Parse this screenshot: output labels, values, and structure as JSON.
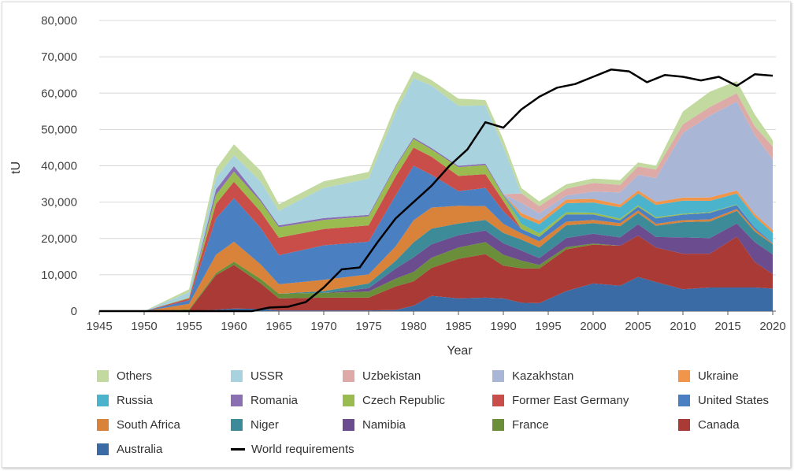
{
  "chart_data": {
    "type": "area",
    "stacked": true,
    "title": "",
    "xlabel": "Year",
    "ylabel": "tU",
    "xlim": [
      1945,
      2020
    ],
    "ylim": [
      0,
      80000
    ],
    "x_ticks": [
      "1945",
      "1950",
      "1955",
      "1960",
      "1965",
      "1970",
      "1975",
      "1980",
      "1985",
      "1990",
      "1995",
      "2000",
      "2005",
      "2010",
      "2015",
      "2020"
    ],
    "y_ticks": [
      "0",
      "10,000",
      "20,000",
      "30,000",
      "40,000",
      "50,000",
      "60,000",
      "70,000",
      "80,000"
    ],
    "grid": "horizontal",
    "legend_position": "bottom",
    "x": [
      1945,
      1950,
      1955,
      1958,
      1960,
      1963,
      1965,
      1970,
      1975,
      1978,
      1980,
      1982,
      1985,
      1988,
      1990,
      1992,
      1994,
      1997,
      2000,
      2003,
      2005,
      2007,
      2010,
      2013,
      2016,
      2018,
      2020
    ],
    "series": [
      {
        "name": "Australia",
        "color": "#3b6ba5",
        "values": [
          0,
          0,
          0,
          400,
          700,
          600,
          200,
          200,
          200,
          300,
          1500,
          4200,
          3500,
          3700,
          3500,
          2300,
          2200,
          5500,
          7600,
          7000,
          9400,
          8000,
          6000,
          6500,
          6500,
          6500,
          6200
        ]
      },
      {
        "name": "Canada",
        "color": "#a93a36",
        "values": [
          0,
          0,
          200,
          9500,
          12000,
          7000,
          3300,
          3500,
          3500,
          6500,
          6700,
          7700,
          10900,
          12000,
          9000,
          9500,
          9500,
          11500,
          10700,
          11000,
          11400,
          9500,
          9800,
          9300,
          14000,
          7000,
          4000
        ]
      },
      {
        "name": "France",
        "color": "#6b8e3a",
        "values": [
          0,
          0,
          300,
          600,
          900,
          1200,
          1300,
          1300,
          1700,
          2100,
          2600,
          2800,
          3100,
          3300,
          3000,
          2100,
          1000,
          600,
          300,
          0,
          0,
          0,
          0,
          0,
          0,
          0,
          0
        ]
      },
      {
        "name": "Namibia",
        "color": "#6b4c8e",
        "values": [
          0,
          0,
          0,
          0,
          0,
          0,
          0,
          0,
          900,
          2800,
          4000,
          3700,
          3400,
          3200,
          3200,
          2800,
          1900,
          2500,
          2700,
          2300,
          3100,
          2900,
          4500,
          4300,
          3600,
          5500,
          5400
        ]
      },
      {
        "name": "Niger",
        "color": "#3d8a98",
        "values": [
          0,
          0,
          0,
          0,
          0,
          0,
          0,
          500,
          1300,
          2100,
          4100,
          4300,
          3200,
          2900,
          2800,
          3000,
          2900,
          3500,
          2900,
          3100,
          3100,
          3100,
          4200,
          4600,
          3500,
          2900,
          2800
        ]
      },
      {
        "name": "South Africa",
        "color": "#d8823a",
        "values": [
          0,
          0,
          1500,
          5000,
          5500,
          4000,
          2600,
          3100,
          2500,
          4000,
          6100,
          5800,
          4900,
          3800,
          2500,
          1700,
          1700,
          1000,
          900,
          800,
          700,
          550,
          550,
          550,
          500,
          600,
          250
        ]
      },
      {
        "name": "United States",
        "color": "#4a7fc2",
        "values": [
          0,
          0,
          1000,
          10000,
          12000,
          10000,
          8000,
          9500,
          9000,
          14000,
          15000,
          9000,
          4000,
          5000,
          3500,
          1200,
          1200,
          2000,
          1500,
          800,
          1000,
          1500,
          1500,
          1800,
          1100,
          550,
          100
        ]
      },
      {
        "name": "Former East Germany",
        "color": "#c94e4a",
        "values": [
          0,
          0,
          500,
          4000,
          4500,
          4500,
          4800,
          4500,
          4500,
          5200,
          5000,
          5000,
          4200,
          3800,
          2800,
          0,
          0,
          0,
          0,
          0,
          0,
          0,
          0,
          0,
          0,
          0,
          0
        ]
      },
      {
        "name": "Czech Republic",
        "color": "#99bb4f",
        "values": [
          0,
          0,
          200,
          2500,
          2800,
          2800,
          2900,
          2500,
          2500,
          2700,
          2400,
          2000,
          2400,
          2500,
          1500,
          1400,
          1000,
          600,
          500,
          450,
          400,
          300,
          250,
          200,
          150,
          0,
          0
        ]
      },
      {
        "name": "Romania",
        "color": "#8a6fb3",
        "values": [
          0,
          0,
          0,
          1500,
          1500,
          500,
          500,
          500,
          400,
          400,
          400,
          400,
          400,
          400,
          400,
          0,
          0,
          0,
          0,
          0,
          0,
          0,
          0,
          0,
          0,
          0,
          0
        ]
      },
      {
        "name": "Russia",
        "color": "#4bb3cc",
        "values": [
          0,
          0,
          0,
          0,
          0,
          0,
          0,
          0,
          0,
          0,
          0,
          0,
          0,
          0,
          0,
          2000,
          2500,
          2500,
          2800,
          3100,
          3300,
          3400,
          3600,
          3100,
          3000,
          2900,
          2800
        ]
      },
      {
        "name": "Ukraine",
        "color": "#f0954a",
        "values": [
          0,
          0,
          0,
          0,
          0,
          0,
          0,
          0,
          0,
          0,
          0,
          0,
          0,
          0,
          0,
          1000,
          1000,
          1000,
          1000,
          800,
          800,
          800,
          850,
          950,
          850,
          800,
          750
        ]
      },
      {
        "name": "Kazakhstan",
        "color": "#a9b6d6",
        "values": [
          0,
          0,
          0,
          0,
          0,
          0,
          0,
          0,
          0,
          0,
          0,
          0,
          0,
          0,
          0,
          2800,
          2000,
          1100,
          2000,
          3300,
          4300,
          6600,
          17800,
          22500,
          24500,
          21700,
          19500
        ]
      },
      {
        "name": "Uzbekistan",
        "color": "#deaaa8",
        "values": [
          0,
          0,
          0,
          0,
          0,
          0,
          0,
          0,
          0,
          0,
          0,
          0,
          0,
          0,
          0,
          2600,
          2000,
          1900,
          2400,
          2100,
          2300,
          2300,
          2400,
          2400,
          2300,
          2400,
          3500
        ]
      },
      {
        "name": "USSR",
        "color": "#a9d2df",
        "values": [
          0,
          0,
          1500,
          3200,
          3000,
          5000,
          4000,
          8300,
          10000,
          14500,
          16300,
          17200,
          16500,
          16000,
          13000,
          0,
          0,
          0,
          0,
          0,
          0,
          0,
          0,
          0,
          0,
          0,
          0
        ]
      },
      {
        "name": "Others",
        "color": "#c2d9a0",
        "values": [
          0,
          0,
          800,
          2500,
          3000,
          3000,
          1800,
          1800,
          1800,
          2000,
          2000,
          1500,
          2000,
          1500,
          2000,
          1500,
          1300,
          1200,
          1200,
          1300,
          1100,
          1100,
          3500,
          4200,
          3300,
          3300,
          1700
        ]
      }
    ],
    "requirements": {
      "name": "World requirements",
      "color": "#000000",
      "x": [
        1945,
        1962,
        1964,
        1966,
        1968,
        1970,
        1972,
        1974,
        1976,
        1978,
        1980,
        1982,
        1984,
        1986,
        1988,
        1990,
        1992,
        1994,
        1996,
        1998,
        2000,
        2002,
        2004,
        2006,
        2008,
        2010,
        2012,
        2014,
        2016,
        2018,
        2020
      ],
      "values": [
        0,
        0,
        1000,
        1200,
        2500,
        6500,
        11500,
        12000,
        19000,
        25500,
        30000,
        34500,
        40000,
        44500,
        52000,
        50500,
        55500,
        59000,
        61500,
        62500,
        64500,
        66500,
        66000,
        63000,
        65000,
        64500,
        63500,
        64500,
        62000,
        65200,
        64800
      ]
    }
  },
  "legend": {
    "rows": [
      [
        "Others",
        "USSR",
        "Uzbekistan",
        "Kazakhstan",
        "Ukraine"
      ],
      [
        "Russia",
        "Romania",
        "Czech Republic",
        "Former East Germany",
        "United States"
      ],
      [
        "South Africa",
        "Niger",
        "Namibia",
        "France",
        "Canada"
      ],
      [
        "Australia",
        "World requirements"
      ]
    ]
  }
}
